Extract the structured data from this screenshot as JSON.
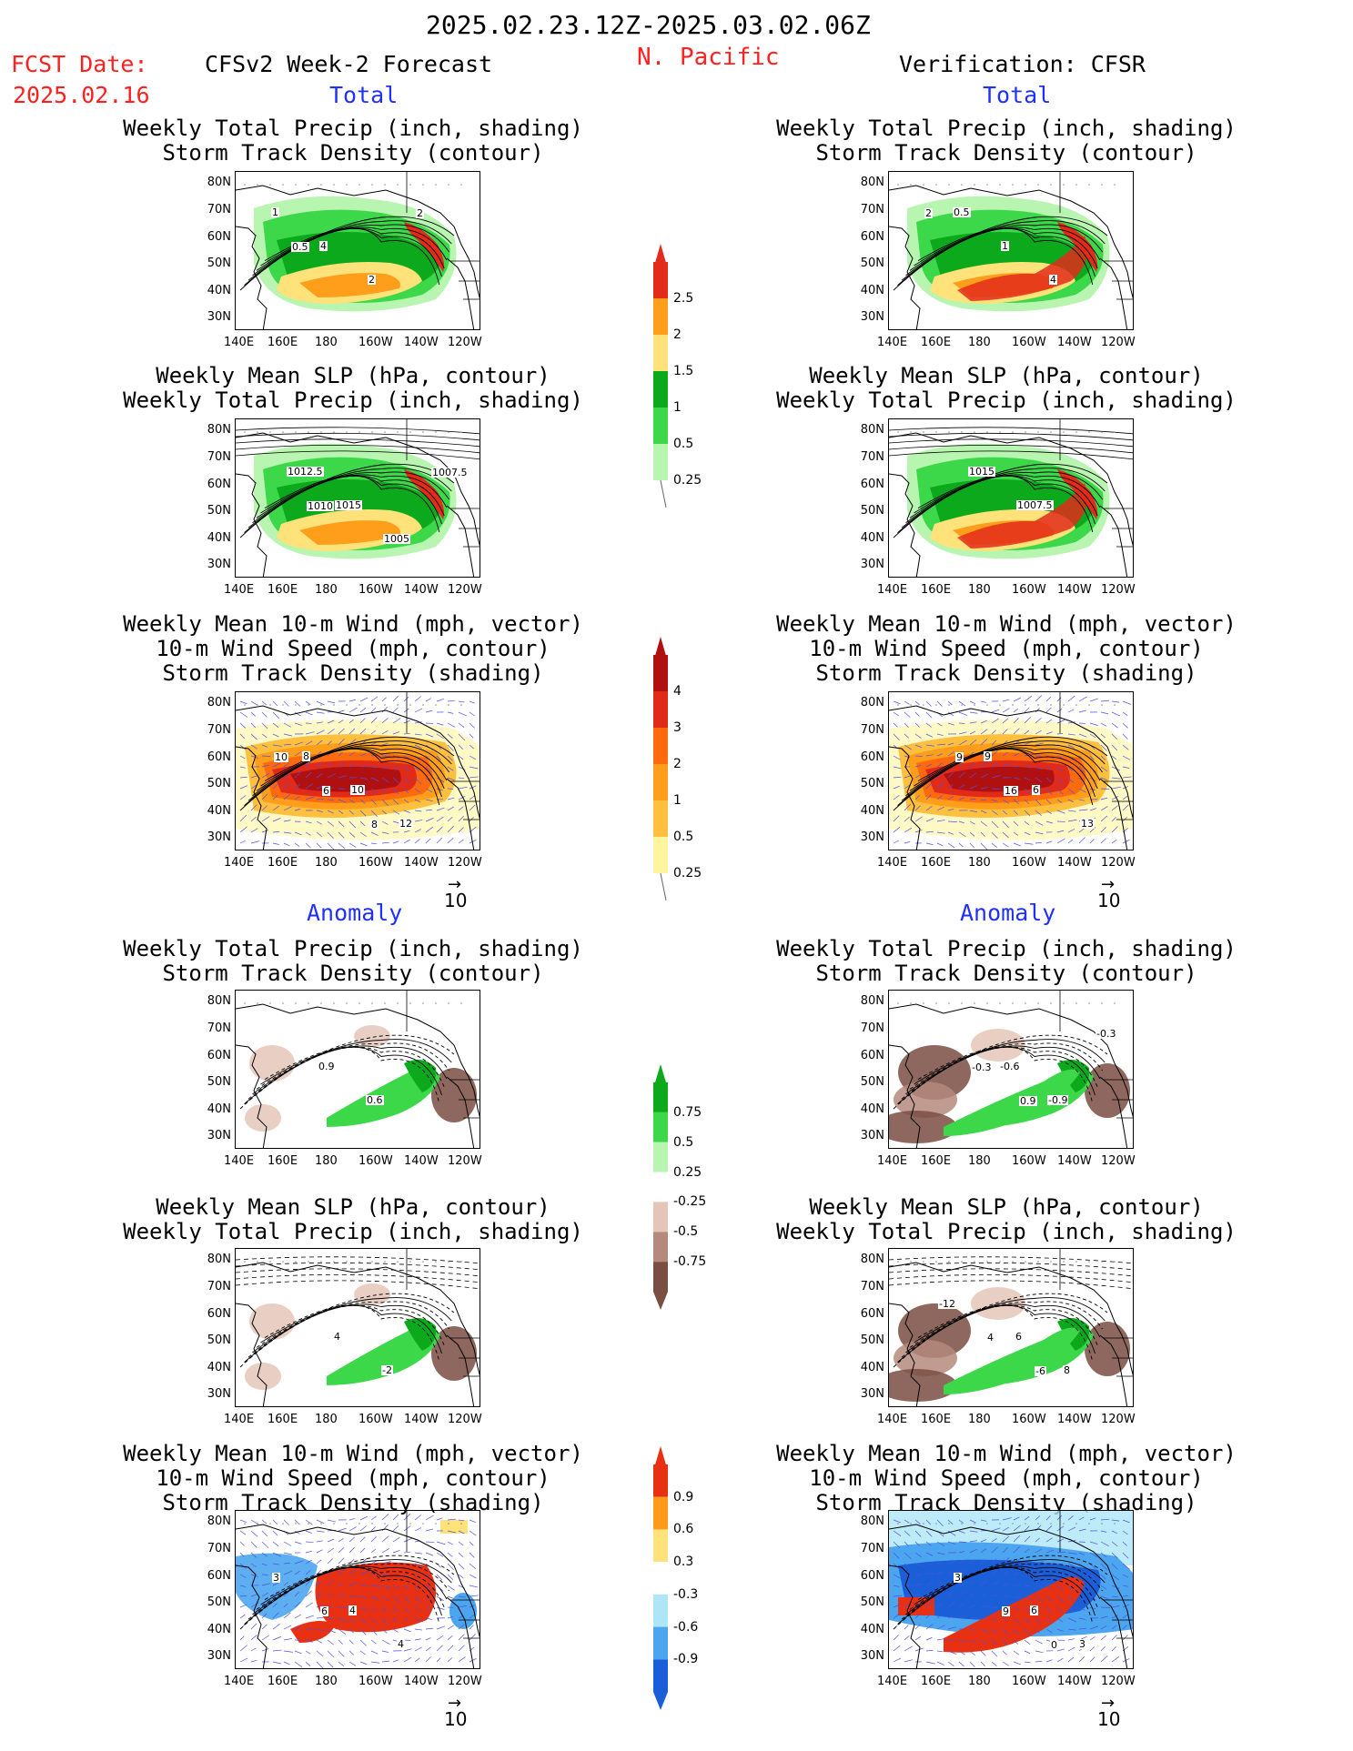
{
  "header": {
    "date_range": "2025.02.23.12Z-2025.03.02.06Z",
    "fcst_label": "FCST Date:",
    "fcst_date": "2025.02.16",
    "region": "N. Pacific",
    "left_title": "CFSv2 Week-2 Forecast",
    "right_title": "Verification: CFSR"
  },
  "sections": {
    "total": "Total",
    "anomaly": "Anomaly"
  },
  "titles": {
    "precip_storm": [
      "Weekly Total Precip (inch, shading)",
      "Storm Track Density (contour)"
    ],
    "slp_precip": [
      "Weekly Mean SLP (hPa, contour)",
      "Weekly Total Precip (inch, shading)"
    ],
    "wind": [
      "Weekly Mean 10-m Wind (mph, vector)",
      "10-m Wind Speed (mph, contour)",
      "Storm Track Density (shading)"
    ]
  },
  "axes": {
    "lat": [
      "80N",
      "70N",
      "60N",
      "50N",
      "40N",
      "30N"
    ],
    "lon": [
      "140E",
      "160E",
      "180",
      "160W",
      "140W",
      "120W"
    ]
  },
  "vector_ref": "10",
  "colorbars": {
    "precip": {
      "labels": [
        "2.5",
        "2",
        "1.5",
        "1",
        "0.5",
        "0.25"
      ],
      "colors": [
        "#e32b1b",
        "#ff9e1a",
        "#ffe27a",
        "#0ca91c",
        "#3cd84a",
        "#b8f5b0"
      ]
    },
    "storm": {
      "labels": [
        "4",
        "3",
        "2",
        "1",
        "0.5",
        "0.25"
      ],
      "colors": [
        "#b01010",
        "#e02a1a",
        "#ff6a0e",
        "#ff9e1a",
        "#ffc040",
        "#fff59e"
      ]
    },
    "precip_anom": {
      "labels": [
        "0.75",
        "0.5",
        "0.25",
        "-0.25",
        "-0.5",
        "-0.75"
      ],
      "colors": [
        "#0ca91c",
        "#3cd84a",
        "#b8f5b0",
        "#ffffff",
        "#e4c5b8",
        "#b5897c",
        "#7a4e42"
      ]
    },
    "storm_anom": {
      "labels": [
        "0.9",
        "0.6",
        "0.3",
        "-0.3",
        "-0.6",
        "-0.9"
      ],
      "colors": [
        "#e83012",
        "#ff9a1a",
        "#ffe27a",
        "#ffffff",
        "#aee6f8",
        "#4ba6ef",
        "#1a5fd8"
      ]
    }
  },
  "panel_labels": {
    "l1": [
      "1",
      "4",
      "2",
      "2",
      "0.5"
    ],
    "r1": [
      "0.5",
      "1",
      "4",
      "2"
    ],
    "l2": [
      "1012.5",
      "1015",
      "1005",
      "1007.5",
      "1010"
    ],
    "r2": [
      "1015",
      "1007.5"
    ],
    "l3": [
      "8",
      "10",
      "12",
      "10",
      "6",
      "8"
    ],
    "r3": [
      "9",
      "6",
      "13",
      "9",
      "16"
    ],
    "l4": [
      "0.9",
      "0.6"
    ],
    "r4": [
      "-0.6",
      "-0.9",
      "-0.3",
      "-0.3",
      "0.9"
    ],
    "l5": [
      "4",
      "-2"
    ],
    "r5": [
      "6",
      "8",
      "-12",
      "4",
      "-6"
    ],
    "l6": [
      "4",
      "4",
      "3",
      "6"
    ],
    "r6": [
      "6",
      "3",
      "3",
      "9",
      "0"
    ]
  }
}
